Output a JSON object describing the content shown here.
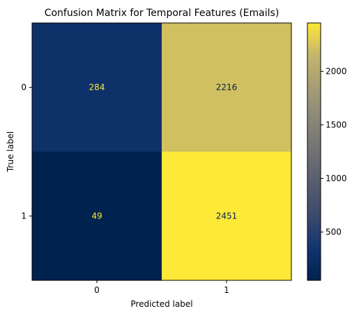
{
  "chart_data": {
    "type": "heatmap",
    "title": "Confusion Matrix for Temporal Features (Emails)",
    "xlabel": "Predicted label",
    "ylabel": "True label",
    "x_categories": [
      "0",
      "1"
    ],
    "y_categories": [
      "0",
      "1"
    ],
    "matrix": [
      [
        284,
        2216
      ],
      [
        49,
        2451
      ]
    ],
    "colormap": "cividis",
    "colorbar": {
      "ticks": [
        500,
        1000,
        1500,
        2000
      ],
      "range": [
        49,
        2451
      ]
    }
  }
}
